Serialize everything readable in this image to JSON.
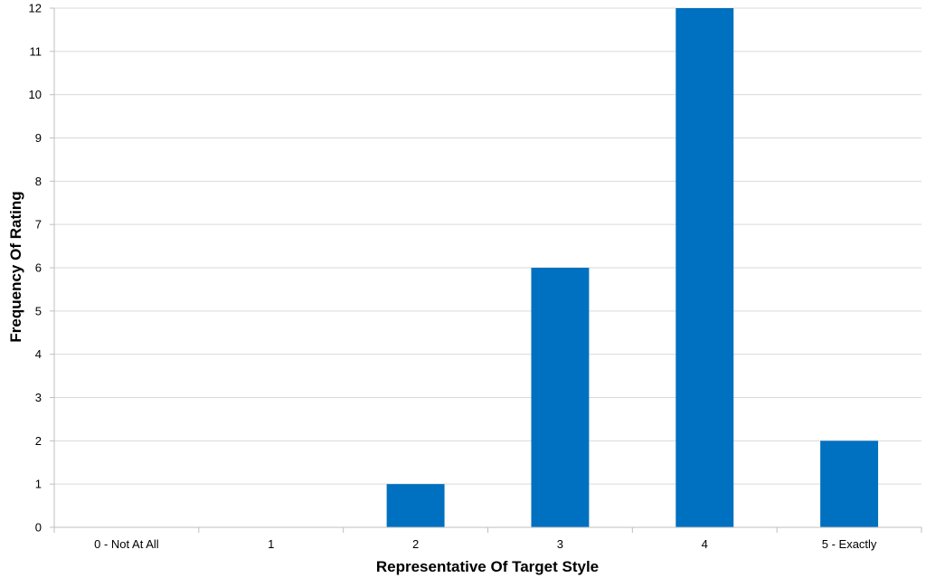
{
  "chart_data": {
    "type": "bar",
    "title": "",
    "xlabel": "Representative Of Target Style",
    "ylabel": "Frequency Of Rating",
    "categories": [
      "0 - Not At All",
      "1",
      "2",
      "3",
      "4",
      "5 - Exactly"
    ],
    "values": [
      0,
      0,
      1,
      6,
      12,
      2
    ],
    "ylim": [
      0,
      12
    ],
    "yticks": [
      0,
      1,
      2,
      3,
      4,
      5,
      6,
      7,
      8,
      9,
      10,
      11,
      12
    ],
    "grid": true,
    "legend": "none",
    "colors": {
      "bar": "#0070C0",
      "grid": "#D9D9D9",
      "axis": "#BFBFBF"
    }
  }
}
